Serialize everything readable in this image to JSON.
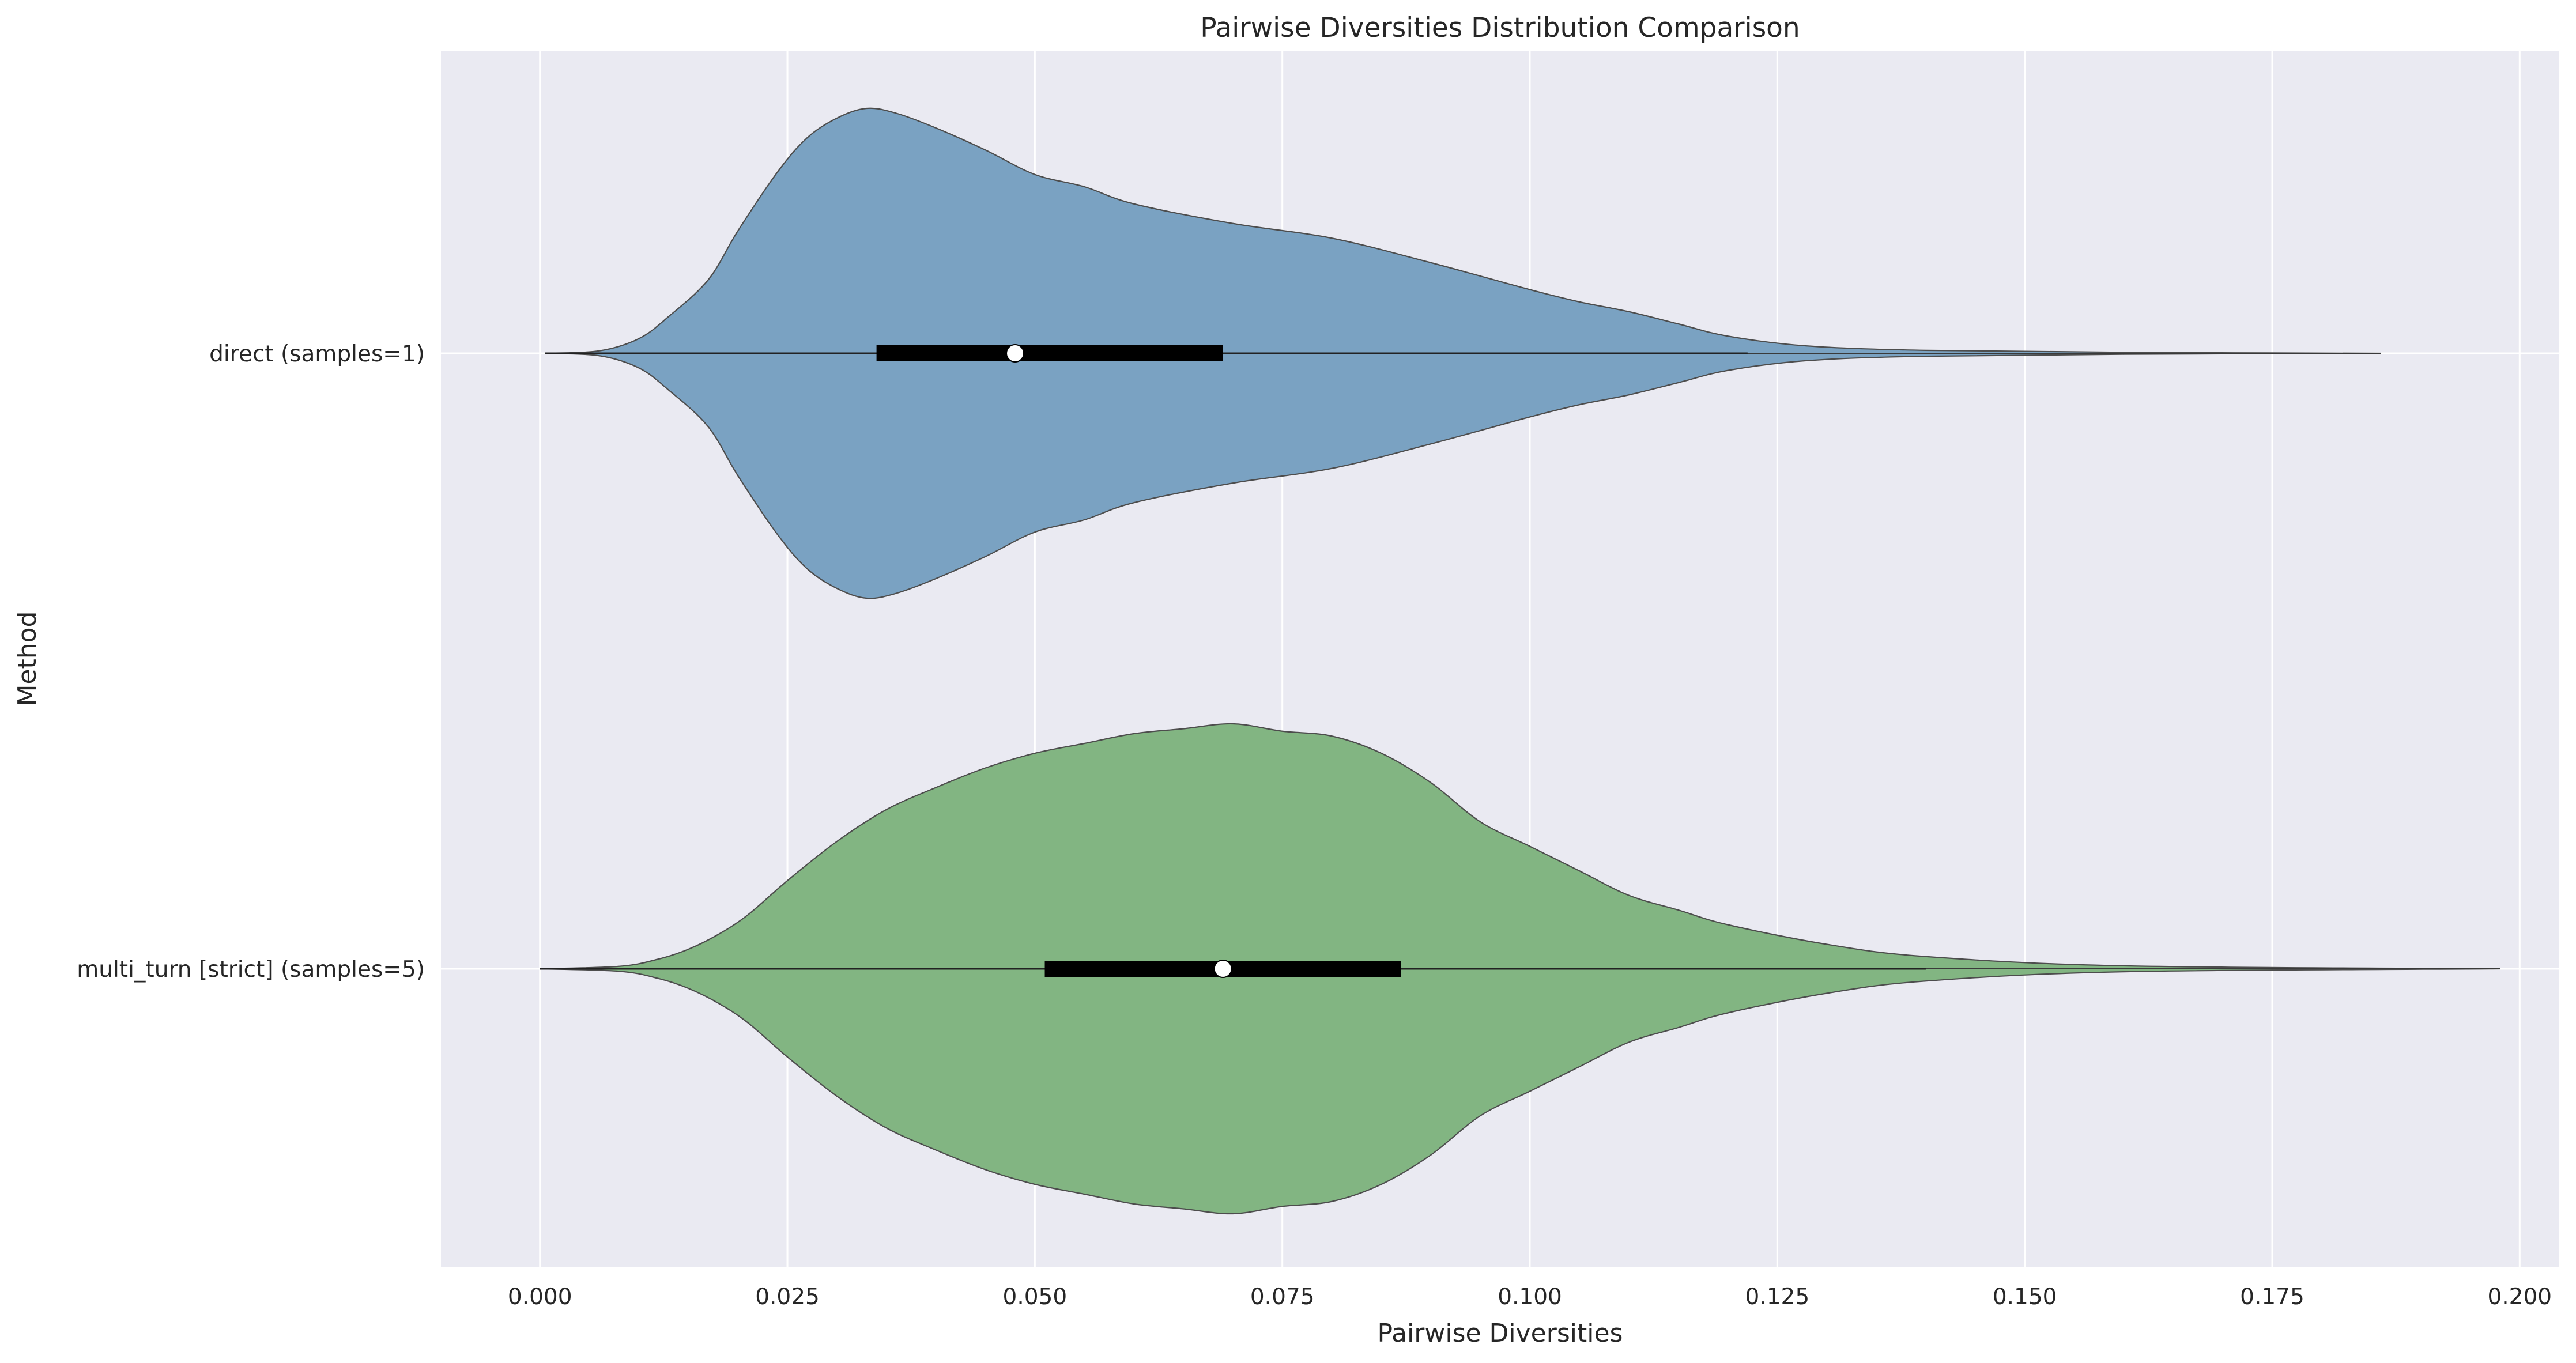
{
  "chart_data": {
    "type": "violin",
    "orientation": "horizontal",
    "title": "Pairwise Diversities Distribution Comparison",
    "xlabel": "Pairwise Diversities",
    "ylabel": "Method",
    "xlim": [
      -0.01,
      0.204
    ],
    "x_ticks": [
      "0.000",
      "0.025",
      "0.050",
      "0.075",
      "0.100",
      "0.125",
      "0.150",
      "0.175",
      "0.200"
    ],
    "grid": true,
    "legend": "none",
    "series": [
      {
        "name": "direct (samples=1)",
        "color": "#7aa2c2",
        "stats": {
          "min": 0.0005,
          "q1": 0.034,
          "median": 0.048,
          "q3": 0.069,
          "whisker_high": 0.122,
          "max": 0.186
        },
        "density_x": [
          0.0005,
          0.006,
          0.01,
          0.013,
          0.017,
          0.02,
          0.024,
          0.027,
          0.03,
          0.033,
          0.036,
          0.04,
          0.045,
          0.05,
          0.055,
          0.06,
          0.07,
          0.08,
          0.09,
          0.1,
          0.105,
          0.11,
          0.115,
          0.12,
          0.128,
          0.14,
          0.16,
          0.186
        ],
        "density_width": [
          0.0,
          0.01,
          0.06,
          0.15,
          0.3,
          0.5,
          0.74,
          0.88,
          0.96,
          1.0,
          0.98,
          0.92,
          0.83,
          0.73,
          0.68,
          0.61,
          0.53,
          0.47,
          0.37,
          0.26,
          0.21,
          0.17,
          0.12,
          0.07,
          0.03,
          0.012,
          0.004,
          0.0
        ]
      },
      {
        "name": "multi_turn [strict] (samples=5)",
        "color": "#82b582",
        "stats": {
          "min": 0.0,
          "q1": 0.051,
          "median": 0.069,
          "q3": 0.087,
          "whisker_high": 0.14,
          "max": 0.198
        },
        "density_x": [
          0.0,
          0.008,
          0.012,
          0.015,
          0.018,
          0.021,
          0.025,
          0.03,
          0.035,
          0.04,
          0.045,
          0.05,
          0.055,
          0.06,
          0.065,
          0.07,
          0.075,
          0.08,
          0.085,
          0.09,
          0.095,
          0.1,
          0.105,
          0.11,
          0.115,
          0.12,
          0.13,
          0.14,
          0.16,
          0.198
        ],
        "density_width": [
          0.0,
          0.01,
          0.04,
          0.08,
          0.14,
          0.22,
          0.36,
          0.52,
          0.65,
          0.74,
          0.82,
          0.88,
          0.92,
          0.96,
          0.98,
          1.0,
          0.97,
          0.95,
          0.88,
          0.76,
          0.6,
          0.5,
          0.4,
          0.3,
          0.24,
          0.18,
          0.1,
          0.05,
          0.012,
          0.0
        ]
      }
    ]
  }
}
